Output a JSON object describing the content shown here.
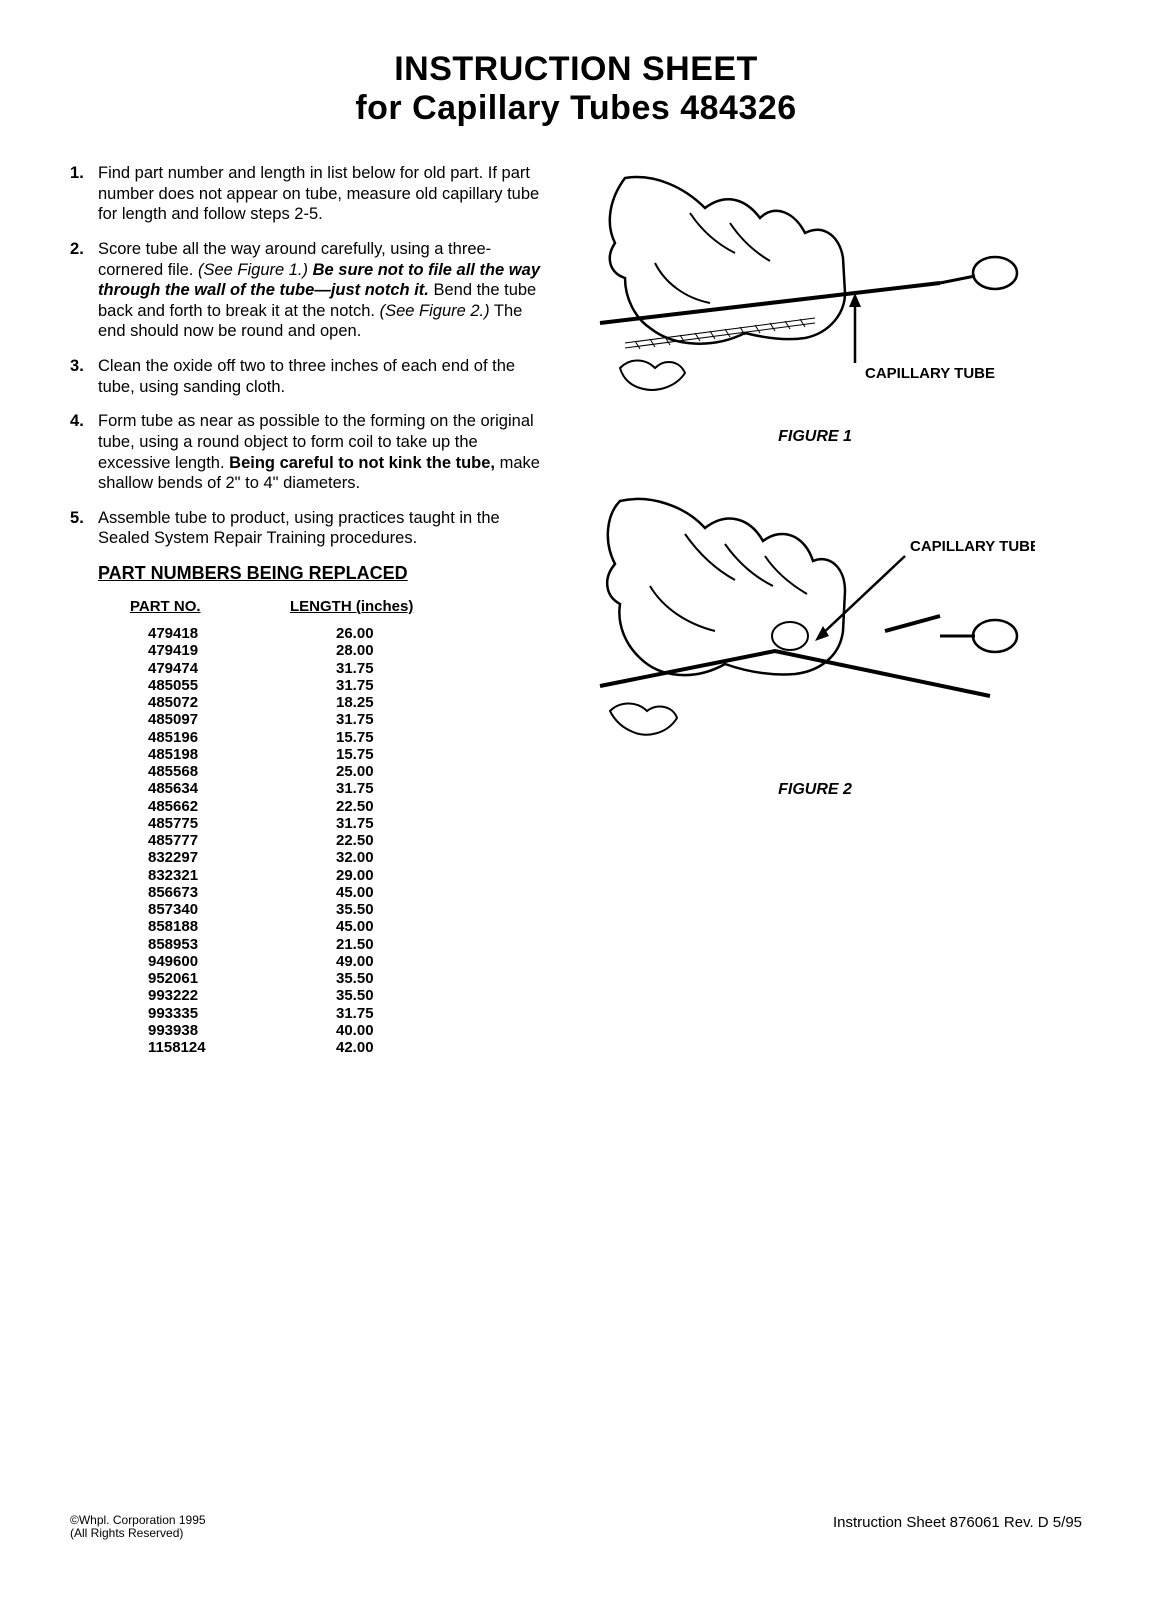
{
  "title": {
    "line1": "INSTRUCTION SHEET",
    "line2": "for Capillary Tubes 484326"
  },
  "steps": [
    {
      "segments": [
        {
          "text": "Find part number and length in list below for old part. If part number does not appear on tube, measure old capillary tube for length and follow steps 2-5."
        }
      ]
    },
    {
      "segments": [
        {
          "text": "Score tube all the way around carefully, using a three-cornered file. "
        },
        {
          "text": "(See Figure 1.) ",
          "style": "italic"
        },
        {
          "text": "Be sure not to file all the way through the wall of the tube—just notch it.",
          "style": "bolditalic"
        },
        {
          "text": " Bend the tube back and forth to break it at the notch. "
        },
        {
          "text": "(See Figure 2.)",
          "style": "italic"
        },
        {
          "text": " The end should now be round and open."
        }
      ]
    },
    {
      "segments": [
        {
          "text": "Clean the oxide off two to three inches of each end of the tube, using sanding cloth."
        }
      ]
    },
    {
      "segments": [
        {
          "text": "Form tube as near as possible to the forming on the original tube, using a round object to form coil to take up the excessive length. "
        },
        {
          "text": "Being careful to not kink the tube,",
          "style": "bold"
        },
        {
          "text": " make shallow bends of 2\" to 4\" diameters."
        }
      ]
    },
    {
      "segments": [
        {
          "text": "Assemble tube to product, using practices taught in the Sealed System Repair Training procedures."
        }
      ]
    }
  ],
  "parts_section": {
    "heading": "PART NUMBERS BEING REPLACED",
    "col1_header": "PART NO.",
    "col2_header": "LENGTH (inches)",
    "rows": [
      {
        "part": "479418",
        "length": "26.00"
      },
      {
        "part": "479419",
        "length": "28.00"
      },
      {
        "part": "479474",
        "length": "31.75"
      },
      {
        "part": "485055",
        "length": "31.75"
      },
      {
        "part": "485072",
        "length": "18.25"
      },
      {
        "part": "485097",
        "length": "31.75"
      },
      {
        "part": "485196",
        "length": "15.75"
      },
      {
        "part": "485198",
        "length": "15.75"
      },
      {
        "part": "485568",
        "length": "25.00"
      },
      {
        "part": "485634",
        "length": "31.75"
      },
      {
        "part": "485662",
        "length": "22.50"
      },
      {
        "part": "485775",
        "length": "31.75"
      },
      {
        "part": "485777",
        "length": "22.50"
      },
      {
        "part": "832297",
        "length": "32.00"
      },
      {
        "part": "832321",
        "length": "29.00"
      },
      {
        "part": "856673",
        "length": "45.00"
      },
      {
        "part": "857340",
        "length": "35.50"
      },
      {
        "part": "858188",
        "length": "45.00"
      },
      {
        "part": "858953",
        "length": "21.50"
      },
      {
        "part": "949600",
        "length": "49.00"
      },
      {
        "part": "952061",
        "length": "35.50"
      },
      {
        "part": "993222",
        "length": "35.50"
      },
      {
        "part": "993335",
        "length": "31.75"
      },
      {
        "part": "993938",
        "length": "40.00"
      },
      {
        "part": "1158124",
        "length": "42.00"
      }
    ]
  },
  "figures": {
    "fig1": {
      "label": "CAPILLARY TUBE",
      "caption": "FIGURE 1"
    },
    "fig2": {
      "label": "CAPILLARY TUBE",
      "caption": "FIGURE 2"
    }
  },
  "footer": {
    "left_line1": "©Whpl. Corporation 1995",
    "left_line2": "(All Rights Reserved)",
    "right": "Instruction Sheet 876061 Rev. D  5/95"
  },
  "colors": {
    "text": "#000000",
    "background": "#ffffff"
  }
}
